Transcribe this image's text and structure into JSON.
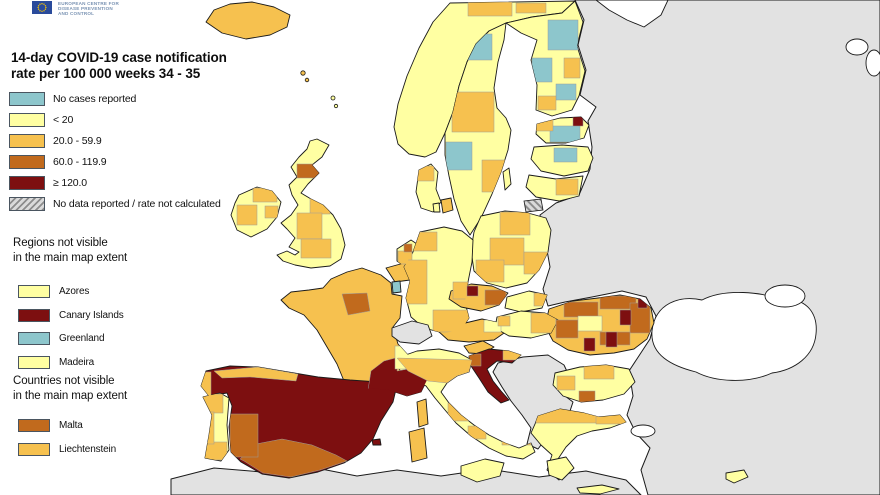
{
  "logo": {
    "org_lines": [
      "EUROPEAN CENTRE FOR",
      "DISEASE PREVENTION",
      "AND CONTROL"
    ],
    "flag_blue": "#2a4b9b",
    "star_yellow": "#ffcc00"
  },
  "title_lines": [
    "14-day COVID-19 case notification",
    "rate per 100 000 weeks 34 - 35"
  ],
  "palette": {
    "no_cases": "#8dc6cc",
    "lt20": "#ffffa2",
    "r20_59": "#f6c14f",
    "r60_119": "#c16a1d",
    "gte120": "#7d0f10",
    "no_data_bg": "#dadada",
    "no_data_stripe": "#8c8c8c",
    "non_reporting": "#e2e2e2",
    "sea": "#ffffff",
    "border": "#1a1a1a"
  },
  "legend": {
    "items": [
      {
        "label": "No cases reported",
        "color_key": "no_cases",
        "hatched": false
      },
      {
        "label": "< 20",
        "color_key": "lt20",
        "hatched": false
      },
      {
        "label": "20.0 - 59.9",
        "color_key": "r20_59",
        "hatched": false
      },
      {
        "label": "60.0 - 119.9",
        "color_key": "r60_119",
        "hatched": false
      },
      {
        "label": "≥ 120.0",
        "color_key": "gte120",
        "hatched": false
      },
      {
        "label": "No data reported / rate not calculated",
        "color_key": "no_data_bg",
        "hatched": true
      }
    ]
  },
  "regions_not_visible": {
    "heading_lines": [
      "Regions not visible",
      "in the main map extent"
    ],
    "items": [
      {
        "label": "Azores",
        "color_key": "lt20"
      },
      {
        "label": "Canary Islands",
        "color_key": "gte120"
      },
      {
        "label": "Greenland",
        "color_key": "no_cases"
      },
      {
        "label": "Madeira",
        "color_key": "lt20"
      }
    ]
  },
  "countries_not_visible": {
    "heading_lines": [
      "Countries not visible",
      "in the main map extent"
    ],
    "items": [
      {
        "label": "Malta",
        "color_key": "r60_119"
      },
      {
        "label": "Liechtenstein",
        "color_key": "r20_59"
      }
    ]
  },
  "map": {
    "countries": [
      {
        "id": "eastern-neighbors",
        "name": "Russia / Belarus / Ukraine / Moldova / Turkey",
        "category": "non_reporting"
      },
      {
        "id": "north-africa",
        "name": "North Africa",
        "category": "non_reporting"
      },
      {
        "id": "western-balkans",
        "name": "Western Balkans",
        "category": "non_reporting"
      },
      {
        "id": "switzerland",
        "name": "Switzerland",
        "category": "non_reporting"
      },
      {
        "id": "iceland",
        "name": "Iceland",
        "category": "r20_59"
      },
      {
        "id": "norway",
        "name": "Norway",
        "category": "lt20"
      },
      {
        "id": "sweden",
        "name": "Sweden",
        "category": "lt20"
      },
      {
        "id": "gotland",
        "name": "Gotland",
        "category": "lt20"
      },
      {
        "id": "finland",
        "name": "Finland",
        "category": "lt20"
      },
      {
        "id": "denmark",
        "name": "Denmark",
        "category": "lt20"
      },
      {
        "id": "zealand",
        "name": "Zealand (Copenhagen)",
        "category": "r20_59"
      },
      {
        "id": "funen",
        "name": "Funen",
        "category": "lt20"
      },
      {
        "id": "estonia",
        "name": "Estonia",
        "category": "lt20"
      },
      {
        "id": "latvia",
        "name": "Latvia",
        "category": "lt20"
      },
      {
        "id": "lithuania",
        "name": "Lithuania",
        "category": "lt20"
      },
      {
        "id": "uk",
        "name": "United Kingdom",
        "category": "lt20"
      },
      {
        "id": "ireland",
        "name": "Ireland",
        "category": "lt20"
      },
      {
        "id": "netherlands",
        "name": "Netherlands",
        "category": "lt20"
      },
      {
        "id": "belgium",
        "name": "Belgium",
        "category": "r20_59"
      },
      {
        "id": "luxembourg",
        "name": "Luxembourg",
        "category": "no_cases"
      },
      {
        "id": "germany",
        "name": "Germany",
        "category": "lt20"
      },
      {
        "id": "poland",
        "name": "Poland",
        "category": "lt20"
      },
      {
        "id": "czechia",
        "name": "Czechia",
        "category": "r20_59"
      },
      {
        "id": "slovakia",
        "name": "Slovakia",
        "category": "lt20"
      },
      {
        "id": "austria",
        "name": "Austria",
        "category": "r20_59"
      },
      {
        "id": "hungary",
        "name": "Hungary",
        "category": "lt20"
      },
      {
        "id": "slovenia",
        "name": "Slovenia",
        "category": "r20_59"
      },
      {
        "id": "croatia",
        "name": "Croatia",
        "category": "gte120"
      },
      {
        "id": "france",
        "name": "France",
        "category": "r20_59"
      },
      {
        "id": "corsica",
        "name": "Corsica",
        "category": "r20_59"
      },
      {
        "id": "spain",
        "name": "Spain",
        "category": "gte120"
      },
      {
        "id": "balearics",
        "name": "Balearic Islands",
        "category": "gte120"
      },
      {
        "id": "portugal",
        "name": "Portugal",
        "category": "lt20"
      },
      {
        "id": "italy",
        "name": "Italy",
        "category": "lt20"
      },
      {
        "id": "sicily",
        "name": "Sicily",
        "category": "lt20"
      },
      {
        "id": "sardinia",
        "name": "Sardinia",
        "category": "r20_59"
      },
      {
        "id": "romania",
        "name": "Romania",
        "category": "r20_59"
      },
      {
        "id": "bulgaria",
        "name": "Bulgaria",
        "category": "lt20"
      },
      {
        "id": "greece",
        "name": "Greece",
        "category": "lt20"
      },
      {
        "id": "peloponnese",
        "name": "Peloponnese",
        "category": "lt20"
      },
      {
        "id": "crete",
        "name": "Crete",
        "category": "lt20"
      },
      {
        "id": "cyprus",
        "name": "Cyprus",
        "category": "lt20"
      },
      {
        "id": "faroe",
        "name": "Faroe Islands",
        "category": "r20_59"
      },
      {
        "id": "shetland",
        "name": "Shetland",
        "category": "lt20"
      }
    ]
  }
}
